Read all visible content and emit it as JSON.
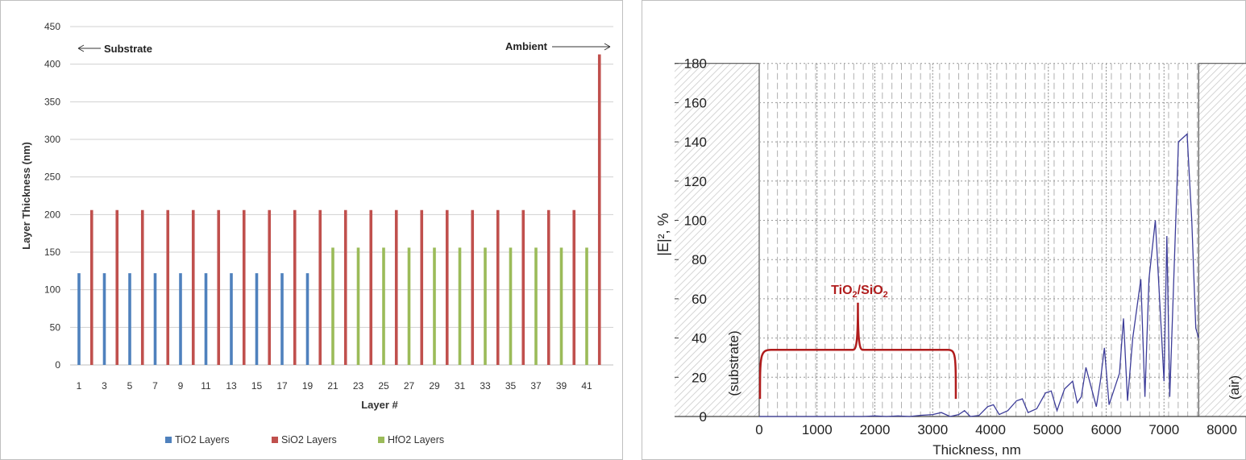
{
  "chart_data": [
    {
      "type": "bar",
      "xlabel": "Layer #",
      "ylabel": "Layer Thickness (nm)",
      "ylim": [
        0,
        450
      ],
      "yticks": [
        0,
        50,
        100,
        150,
        200,
        250,
        300,
        350,
        400,
        450
      ],
      "xtick_labels": [
        "1",
        "3",
        "5",
        "7",
        "9",
        "11",
        "13",
        "15",
        "17",
        "19",
        "21",
        "23",
        "25",
        "27",
        "29",
        "31",
        "33",
        "35",
        "37",
        "39",
        "41"
      ],
      "legend": {
        "position": "bottom"
      },
      "gridlines": true,
      "series": [
        {
          "name": "TiO2 Layers",
          "color": "#4f81bd",
          "layers": [
            1,
            3,
            5,
            7,
            9,
            11,
            13,
            15,
            17,
            19
          ],
          "values": [
            122,
            122,
            122,
            122,
            122,
            122,
            122,
            122,
            122,
            122
          ]
        },
        {
          "name": "SiO2 Layers",
          "color": "#c0504d",
          "layers": [
            2,
            4,
            6,
            8,
            10,
            12,
            14,
            16,
            18,
            20,
            22,
            24,
            26,
            28,
            30,
            32,
            34,
            36,
            38,
            40,
            42
          ],
          "values": [
            206,
            206,
            206,
            206,
            206,
            206,
            206,
            206,
            206,
            206,
            206,
            206,
            206,
            206,
            206,
            206,
            206,
            206,
            206,
            206,
            413
          ]
        },
        {
          "name": "HfO2 Layers",
          "color": "#9bbb59",
          "layers": [
            21,
            23,
            25,
            27,
            29,
            31,
            33,
            35,
            37,
            39,
            41
          ],
          "values": [
            156,
            156,
            156,
            156,
            156,
            156,
            156,
            156,
            156,
            156,
            156
          ]
        }
      ],
      "annotations": {
        "left": "Substrate",
        "right": "Ambient"
      }
    },
    {
      "type": "line",
      "xlabel": "Thickness, nm",
      "ylabel": "|E|², %",
      "xlim": [
        -700,
        8200
      ],
      "ylim": [
        -3,
        200
      ],
      "xticks": [
        0,
        1000,
        2000,
        3000,
        4000,
        5000,
        6000,
        7000,
        8000
      ],
      "yticks": [
        0,
        20,
        40,
        60,
        80,
        100,
        120,
        140,
        160,
        180
      ],
      "series": [
        {
          "color": "#3d3d99",
          "x": [
            0,
            1800,
            2000,
            2200,
            2400,
            2600,
            2800,
            3000,
            3150,
            3300,
            3450,
            3550,
            3650,
            3800,
            3950,
            4050,
            4150,
            4300,
            4450,
            4550,
            4650,
            4800,
            4950,
            5050,
            5150,
            5280,
            5420,
            5500,
            5570,
            5650,
            5830,
            5900,
            5970,
            6050,
            6230,
            6300,
            6370,
            6460,
            6600,
            6670,
            6740,
            6850,
            7000,
            7050,
            7100,
            7250,
            7400,
            7480,
            7550,
            7600
          ],
          "y": [
            0,
            0,
            0.3,
            0,
            0.3,
            0,
            0.6,
            1,
            2,
            0,
            1,
            3,
            0,
            0.5,
            5,
            6,
            1,
            3,
            8,
            9,
            2,
            4,
            12,
            13,
            3,
            14,
            18,
            7,
            10,
            25,
            5,
            18,
            35,
            6,
            22,
            50,
            8,
            40,
            70,
            10,
            70,
            100,
            18,
            92,
            10,
            140,
            144,
            100,
            45,
            40
          ]
        }
      ],
      "region_labels": {
        "left": "(substrate)",
        "right": "(air)"
      },
      "bracket_label": {
        "main": "TiO",
        "sub1": "2",
        "sep": "/SiO",
        "sub2": "2"
      },
      "bracket_range": [
        0,
        3400
      ],
      "bracket_color": "#b01c1c"
    }
  ]
}
